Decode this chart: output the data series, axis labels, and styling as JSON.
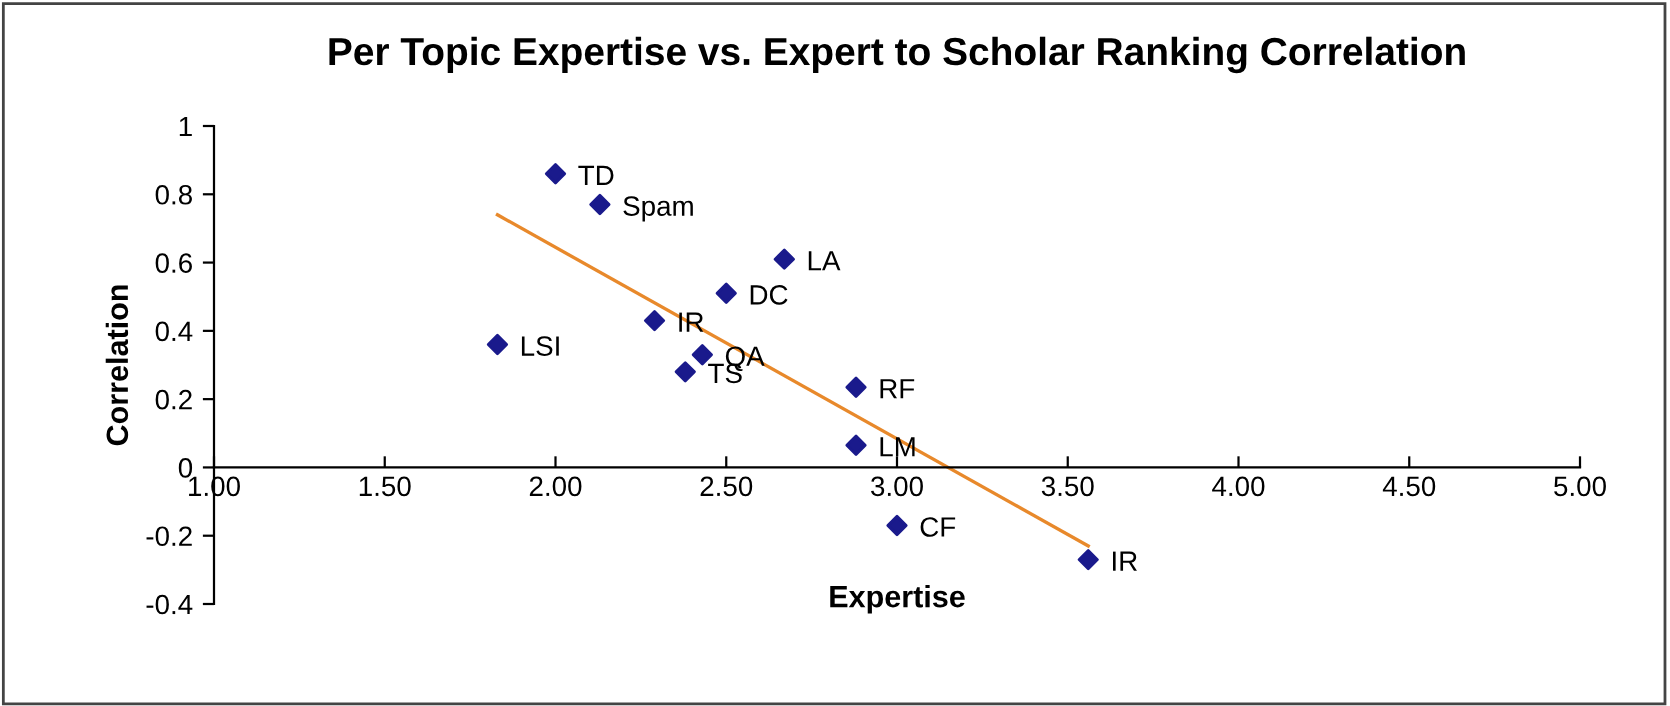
{
  "chart_data": {
    "type": "scatter",
    "title": "Per Topic Expertise vs. Expert to Scholar Ranking Correlation",
    "xlabel": "Expertise",
    "ylabel": "Correlation",
    "xlim": [
      1,
      5
    ],
    "xticks": [
      {
        "value": 1,
        "label": "1.00"
      },
      {
        "value": 1.5,
        "label": "1.50"
      },
      {
        "value": 2,
        "label": "2.00"
      },
      {
        "value": 2.5,
        "label": "2.50"
      },
      {
        "value": 3,
        "label": "3.00"
      },
      {
        "value": 3.5,
        "label": "3.50"
      },
      {
        "value": 4,
        "label": "4.00"
      },
      {
        "value": 4.5,
        "label": "4.50"
      },
      {
        "value": 5,
        "label": "5.00"
      }
    ],
    "ylim": [
      -0.4,
      1
    ],
    "yticks": [
      -0.4,
      -0.2,
      0,
      0.2,
      0.4,
      0.6,
      0.8,
      1
    ],
    "marker": "diamond",
    "grid": false,
    "legend": false,
    "series": [
      {
        "color": "#1a1a8c",
        "x": [
          2.0,
          2.13,
          2.67,
          2.5,
          2.29,
          1.83,
          2.43,
          2.38,
          2.88,
          2.88,
          3.0,
          3.56
        ],
        "values": [
          0.86,
          0.77,
          0.61,
          0.51,
          0.43,
          0.36,
          0.33,
          0.28,
          0.235,
          0.065,
          -0.17,
          -0.27
        ]
      },
      {
        "type": "line",
        "color": "#e8892b",
        "marker": "none",
        "x": [
          1.83,
          3.56
        ],
        "values": [
          0.74,
          -0.23
        ]
      }
    ],
    "annotations": [
      {
        "text": "TD",
        "x": 2.0,
        "y": 0.86
      },
      {
        "text": "Spam",
        "x": 2.13,
        "y": 0.77
      },
      {
        "text": "LA",
        "x": 2.67,
        "y": 0.61
      },
      {
        "text": "DC",
        "x": 2.5,
        "y": 0.51
      },
      {
        "text": "IR",
        "x": 2.29,
        "y": 0.43
      },
      {
        "text": "LSI",
        "x": 1.83,
        "y": 0.36
      },
      {
        "text": "QA",
        "x": 2.43,
        "y": 0.33
      },
      {
        "text": "TS",
        "x": 2.38,
        "y": 0.28
      },
      {
        "text": "RF",
        "x": 2.88,
        "y": 0.235
      },
      {
        "text": "LM",
        "x": 2.88,
        "y": 0.065
      },
      {
        "text": "CF",
        "x": 3.0,
        "y": -0.17
      },
      {
        "text": "IR",
        "x": 3.56,
        "y": -0.27
      }
    ]
  }
}
